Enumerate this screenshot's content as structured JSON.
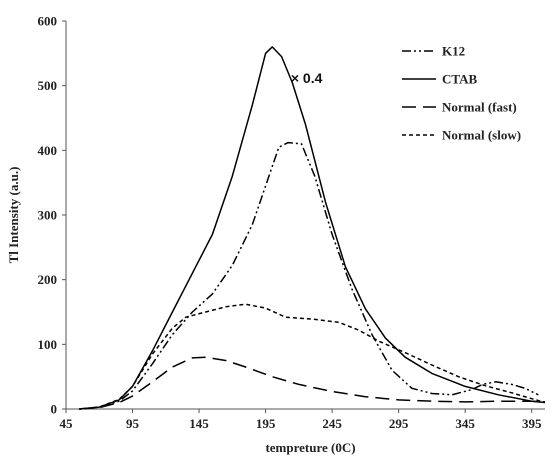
{
  "chart_data": {
    "type": "line",
    "title": "",
    "xlabel": "tempreture (0C)",
    "ylabel": "Tl Intensity (a.u.)",
    "xlim": [
      45,
      405
    ],
    "ylim": [
      0,
      600
    ],
    "x_ticks": [
      45,
      95,
      145,
      195,
      245,
      295,
      345,
      395
    ],
    "y_ticks": [
      0,
      100,
      200,
      300,
      400,
      500,
      600
    ],
    "grid": false,
    "legend_position": "top-right",
    "annotation": {
      "text": "× 0.4",
      "x": 214,
      "y": 512
    },
    "series": [
      {
        "name": "K12",
        "dash": "9,3,2,3,2,3",
        "color": "#000000",
        "points": [
          [
            55,
            0
          ],
          [
            70,
            3
          ],
          [
            85,
            12
          ],
          [
            95,
            28
          ],
          [
            110,
            70
          ],
          [
            125,
            115
          ],
          [
            140,
            150
          ],
          [
            155,
            178
          ],
          [
            170,
            222
          ],
          [
            185,
            285
          ],
          [
            195,
            345
          ],
          [
            205,
            405
          ],
          [
            212,
            412
          ],
          [
            222,
            410
          ],
          [
            232,
            360
          ],
          [
            245,
            270
          ],
          [
            260,
            185
          ],
          [
            275,
            115
          ],
          [
            290,
            60
          ],
          [
            305,
            32
          ],
          [
            320,
            24
          ],
          [
            335,
            22
          ],
          [
            350,
            30
          ],
          [
            358,
            38
          ],
          [
            368,
            42
          ],
          [
            380,
            38
          ],
          [
            390,
            32
          ],
          [
            400,
            22
          ]
        ]
      },
      {
        "name": "CTAB",
        "dash": "",
        "color": "#000000",
        "points": [
          [
            55,
            0
          ],
          [
            70,
            3
          ],
          [
            85,
            14
          ],
          [
            95,
            35
          ],
          [
            110,
            90
          ],
          [
            125,
            150
          ],
          [
            140,
            210
          ],
          [
            155,
            270
          ],
          [
            170,
            360
          ],
          [
            185,
            470
          ],
          [
            195,
            550
          ],
          [
            200,
            560
          ],
          [
            207,
            545
          ],
          [
            215,
            505
          ],
          [
            225,
            440
          ],
          [
            240,
            320
          ],
          [
            255,
            220
          ],
          [
            270,
            155
          ],
          [
            285,
            110
          ],
          [
            300,
            80
          ],
          [
            320,
            55
          ],
          [
            345,
            35
          ],
          [
            370,
            22
          ],
          [
            395,
            12
          ],
          [
            405,
            10
          ]
        ]
      },
      {
        "name": "Normal (fast)",
        "dash": "14,7",
        "color": "#000000",
        "points": [
          [
            55,
            0
          ],
          [
            70,
            2
          ],
          [
            85,
            10
          ],
          [
            95,
            20
          ],
          [
            110,
            42
          ],
          [
            125,
            65
          ],
          [
            140,
            79
          ],
          [
            150,
            80
          ],
          [
            165,
            75
          ],
          [
            180,
            65
          ],
          [
            200,
            50
          ],
          [
            220,
            38
          ],
          [
            245,
            27
          ],
          [
            270,
            19
          ],
          [
            295,
            14
          ],
          [
            320,
            12
          ],
          [
            345,
            11
          ],
          [
            370,
            12
          ],
          [
            395,
            12
          ],
          [
            405,
            11
          ]
        ]
      },
      {
        "name": "Normal (slow)",
        "dash": "4,3",
        "color": "#000000",
        "points": [
          [
            55,
            0
          ],
          [
            70,
            3
          ],
          [
            85,
            15
          ],
          [
            95,
            35
          ],
          [
            110,
            85
          ],
          [
            125,
            125
          ],
          [
            135,
            142
          ],
          [
            150,
            150
          ],
          [
            165,
            158
          ],
          [
            180,
            162
          ],
          [
            195,
            156
          ],
          [
            210,
            142
          ],
          [
            230,
            139
          ],
          [
            250,
            134
          ],
          [
            265,
            122
          ],
          [
            280,
            105
          ],
          [
            300,
            87
          ],
          [
            320,
            68
          ],
          [
            340,
            50
          ],
          [
            360,
            36
          ],
          [
            380,
            25
          ],
          [
            395,
            16
          ],
          [
            405,
            10
          ]
        ]
      }
    ]
  }
}
